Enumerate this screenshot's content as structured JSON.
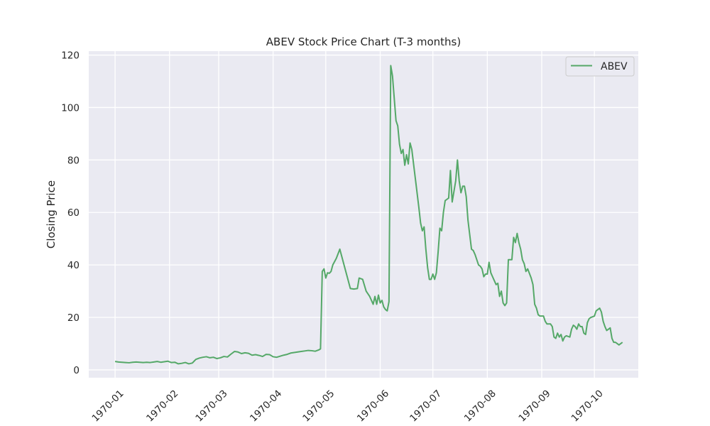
{
  "chart_data": {
    "type": "line",
    "title": "ABEV Stock Price Chart (T-3 months)",
    "xlabel": "",
    "ylabel": "Closing Price",
    "x_tick_labels": [
      "1970-01",
      "1970-02",
      "1970-03",
      "1970-04",
      "1970-05",
      "1970-06",
      "1970-07",
      "1970-08",
      "1970-09",
      "1970-10"
    ],
    "y_tick_labels": [
      "0",
      "20",
      "40",
      "60",
      "80",
      "100",
      "120"
    ],
    "y_ticks": [
      0,
      20,
      40,
      60,
      80,
      100,
      120
    ],
    "ylim": [
      -3,
      121.5
    ],
    "xlim": [
      "1969-12-17",
      "1970-10-26"
    ],
    "grid": true,
    "legend_position": "top-right",
    "colors": {
      "background": "#eaeaf2",
      "grid": "#ffffff",
      "line": "#55a868"
    },
    "series": [
      {
        "name": "ABEV",
        "points": [
          [
            "1970-01-01",
            3.2
          ],
          [
            "1970-01-03",
            3.0
          ],
          [
            "1970-01-05",
            2.9
          ],
          [
            "1970-01-07",
            2.8
          ],
          [
            "1970-01-09",
            2.7
          ],
          [
            "1970-01-11",
            2.9
          ],
          [
            "1970-01-13",
            3.0
          ],
          [
            "1970-01-15",
            2.9
          ],
          [
            "1970-01-17",
            2.8
          ],
          [
            "1970-01-19",
            2.9
          ],
          [
            "1970-01-21",
            2.8
          ],
          [
            "1970-01-23",
            3.0
          ],
          [
            "1970-01-25",
            3.2
          ],
          [
            "1970-01-27",
            2.9
          ],
          [
            "1970-01-29",
            3.1
          ],
          [
            "1970-01-31",
            3.3
          ],
          [
            "1970-02-02",
            2.8
          ],
          [
            "1970-02-04",
            2.9
          ],
          [
            "1970-02-06",
            2.3
          ],
          [
            "1970-02-08",
            2.5
          ],
          [
            "1970-02-10",
            2.8
          ],
          [
            "1970-02-12",
            2.3
          ],
          [
            "1970-02-14",
            2.6
          ],
          [
            "1970-02-16",
            4.0
          ],
          [
            "1970-02-18",
            4.5
          ],
          [
            "1970-02-20",
            4.8
          ],
          [
            "1970-02-22",
            5.0
          ],
          [
            "1970-02-24",
            4.6
          ],
          [
            "1970-02-26",
            4.8
          ],
          [
            "1970-02-28",
            4.3
          ],
          [
            "1970-03-02",
            4.6
          ],
          [
            "1970-03-04",
            5.1
          ],
          [
            "1970-03-06",
            4.9
          ],
          [
            "1970-03-08",
            6.0
          ],
          [
            "1970-03-10",
            7.0
          ],
          [
            "1970-03-12",
            6.8
          ],
          [
            "1970-03-14",
            6.2
          ],
          [
            "1970-03-16",
            6.5
          ],
          [
            "1970-03-18",
            6.3
          ],
          [
            "1970-03-20",
            5.6
          ],
          [
            "1970-03-22",
            5.8
          ],
          [
            "1970-03-24",
            5.5
          ],
          [
            "1970-03-26",
            5.1
          ],
          [
            "1970-03-28",
            5.9
          ],
          [
            "1970-03-30",
            5.8
          ],
          [
            "1970-04-01",
            5.0
          ],
          [
            "1970-04-03",
            4.8
          ],
          [
            "1970-04-05",
            5.2
          ],
          [
            "1970-04-07",
            5.6
          ],
          [
            "1970-04-09",
            5.9
          ],
          [
            "1970-04-11",
            6.4
          ],
          [
            "1970-04-13",
            6.6
          ],
          [
            "1970-04-15",
            6.8
          ],
          [
            "1970-04-17",
            7.0
          ],
          [
            "1970-04-19",
            7.2
          ],
          [
            "1970-04-21",
            7.4
          ],
          [
            "1970-04-23",
            7.3
          ],
          [
            "1970-04-25",
            7.1
          ],
          [
            "1970-04-27",
            7.6
          ],
          [
            "1970-04-28",
            8.0
          ],
          [
            "1970-04-29",
            37.5
          ],
          [
            "1970-04-30",
            38.5
          ],
          [
            "1970-05-01",
            35.0
          ],
          [
            "1970-05-02",
            37.0
          ],
          [
            "1970-05-03",
            36.8
          ],
          [
            "1970-05-04",
            37.5
          ],
          [
            "1970-05-05",
            40.0
          ],
          [
            "1970-05-07",
            42.5
          ],
          [
            "1970-05-09",
            46.0
          ],
          [
            "1970-05-11",
            41.0
          ],
          [
            "1970-05-13",
            36.0
          ],
          [
            "1970-05-15",
            31.0
          ],
          [
            "1970-05-17",
            30.8
          ],
          [
            "1970-05-19",
            31.0
          ],
          [
            "1970-05-20",
            35.0
          ],
          [
            "1970-05-22",
            34.5
          ],
          [
            "1970-05-24",
            30.0
          ],
          [
            "1970-05-26",
            28.0
          ],
          [
            "1970-05-27",
            26.5
          ],
          [
            "1970-05-28",
            25.0
          ],
          [
            "1970-05-29",
            28.0
          ],
          [
            "1970-05-30",
            25.0
          ],
          [
            "1970-05-31",
            28.5
          ],
          [
            "1970-06-01",
            25.5
          ],
          [
            "1970-06-02",
            26.5
          ],
          [
            "1970-06-03",
            24.0
          ],
          [
            "1970-06-04",
            23.0
          ],
          [
            "1970-06-05",
            22.5
          ],
          [
            "1970-06-06",
            26.0
          ],
          [
            "1970-06-07",
            116.0
          ],
          [
            "1970-06-08",
            112.0
          ],
          [
            "1970-06-10",
            95.0
          ],
          [
            "1970-06-11",
            93.0
          ],
          [
            "1970-06-12",
            86.0
          ],
          [
            "1970-06-13",
            82.5
          ],
          [
            "1970-06-14",
            84.0
          ],
          [
            "1970-06-15",
            78.0
          ],
          [
            "1970-06-16",
            82.0
          ],
          [
            "1970-06-17",
            78.5
          ],
          [
            "1970-06-18",
            86.5
          ],
          [
            "1970-06-19",
            84.0
          ],
          [
            "1970-06-21",
            73.0
          ],
          [
            "1970-06-23",
            62.0
          ],
          [
            "1970-06-24",
            56.0
          ],
          [
            "1970-06-25",
            53.0
          ],
          [
            "1970-06-26",
            54.5
          ],
          [
            "1970-06-27",
            46.0
          ],
          [
            "1970-06-28",
            39.0
          ],
          [
            "1970-06-29",
            34.5
          ],
          [
            "1970-06-30",
            34.5
          ],
          [
            "1970-07-01",
            36.5
          ],
          [
            "1970-07-02",
            34.5
          ],
          [
            "1970-07-03",
            37.0
          ],
          [
            "1970-07-04",
            45.0
          ],
          [
            "1970-07-05",
            54.0
          ],
          [
            "1970-07-06",
            53.0
          ],
          [
            "1970-07-07",
            60.0
          ],
          [
            "1970-07-08",
            64.5
          ],
          [
            "1970-07-09",
            65.0
          ],
          [
            "1970-07-10",
            65.5
          ],
          [
            "1970-07-11",
            76.0
          ],
          [
            "1970-07-12",
            64.0
          ],
          [
            "1970-07-13",
            68.0
          ],
          [
            "1970-07-14",
            72.0
          ],
          [
            "1970-07-15",
            80.0
          ],
          [
            "1970-07-16",
            72.0
          ],
          [
            "1970-07-17",
            67.5
          ],
          [
            "1970-07-18",
            70.0
          ],
          [
            "1970-07-19",
            70.0
          ],
          [
            "1970-07-20",
            66.0
          ],
          [
            "1970-07-21",
            57.0
          ],
          [
            "1970-07-23",
            46.0
          ],
          [
            "1970-07-24",
            45.5
          ],
          [
            "1970-07-25",
            44.0
          ],
          [
            "1970-07-26",
            42.0
          ],
          [
            "1970-07-27",
            40.0
          ],
          [
            "1970-07-28",
            39.5
          ],
          [
            "1970-07-29",
            38.5
          ],
          [
            "1970-07-30",
            35.5
          ],
          [
            "1970-07-31",
            36.5
          ],
          [
            "1970-08-01",
            36.5
          ],
          [
            "1970-08-02",
            41.0
          ],
          [
            "1970-08-03",
            37.0
          ],
          [
            "1970-08-04",
            35.5
          ],
          [
            "1970-08-05",
            34.0
          ],
          [
            "1970-08-06",
            32.5
          ],
          [
            "1970-08-07",
            33.0
          ],
          [
            "1970-08-08",
            28.0
          ],
          [
            "1970-08-09",
            30.0
          ],
          [
            "1970-08-10",
            25.5
          ],
          [
            "1970-08-11",
            24.5
          ],
          [
            "1970-08-12",
            25.5
          ],
          [
            "1970-08-13",
            42.0
          ],
          [
            "1970-08-15",
            42.0
          ],
          [
            "1970-08-16",
            50.5
          ],
          [
            "1970-08-17",
            48.5
          ],
          [
            "1970-08-18",
            52.0
          ],
          [
            "1970-08-19",
            48.5
          ],
          [
            "1970-08-20",
            46.0
          ],
          [
            "1970-08-21",
            42.0
          ],
          [
            "1970-08-22",
            40.5
          ],
          [
            "1970-08-23",
            37.5
          ],
          [
            "1970-08-24",
            38.5
          ],
          [
            "1970-08-26",
            35.0
          ],
          [
            "1970-08-27",
            32.5
          ],
          [
            "1970-08-28",
            25.0
          ],
          [
            "1970-08-29",
            23.5
          ],
          [
            "1970-08-30",
            21.0
          ],
          [
            "1970-08-31",
            20.5
          ],
          [
            "1970-09-02",
            20.5
          ],
          [
            "1970-09-03",
            18.5
          ],
          [
            "1970-09-04",
            17.5
          ],
          [
            "1970-09-06",
            17.5
          ],
          [
            "1970-09-07",
            16.5
          ],
          [
            "1970-09-08",
            12.5
          ],
          [
            "1970-09-09",
            12.0
          ],
          [
            "1970-09-10",
            14.0
          ],
          [
            "1970-09-11",
            12.5
          ],
          [
            "1970-09-12",
            13.5
          ],
          [
            "1970-09-13",
            11.0
          ],
          [
            "1970-09-14",
            12.5
          ],
          [
            "1970-09-15",
            13.0
          ],
          [
            "1970-09-17",
            12.5
          ],
          [
            "1970-09-18",
            15.5
          ],
          [
            "1970-09-19",
            17.0
          ],
          [
            "1970-09-20",
            16.5
          ],
          [
            "1970-09-21",
            15.5
          ],
          [
            "1970-09-22",
            17.5
          ],
          [
            "1970-09-23",
            16.5
          ],
          [
            "1970-09-24",
            16.5
          ],
          [
            "1970-09-25",
            14.0
          ],
          [
            "1970-09-26",
            13.5
          ],
          [
            "1970-09-27",
            18.0
          ],
          [
            "1970-09-28",
            19.5
          ],
          [
            "1970-09-29",
            20.0
          ],
          [
            "1970-10-01",
            20.5
          ],
          [
            "1970-10-02",
            22.5
          ],
          [
            "1970-10-03",
            23.0
          ],
          [
            "1970-10-04",
            23.5
          ],
          [
            "1970-10-05",
            22.0
          ],
          [
            "1970-10-06",
            18.5
          ],
          [
            "1970-10-07",
            16.5
          ],
          [
            "1970-10-08",
            15.0
          ],
          [
            "1970-10-09",
            15.5
          ],
          [
            "1970-10-10",
            16.0
          ],
          [
            "1970-10-11",
            12.0
          ],
          [
            "1970-10-12",
            10.5
          ],
          [
            "1970-10-13",
            10.5
          ],
          [
            "1970-10-14",
            10.0
          ],
          [
            "1970-10-15",
            9.5
          ],
          [
            "1970-10-16",
            10.0
          ],
          [
            "1970-10-17",
            10.5
          ]
        ]
      }
    ]
  }
}
